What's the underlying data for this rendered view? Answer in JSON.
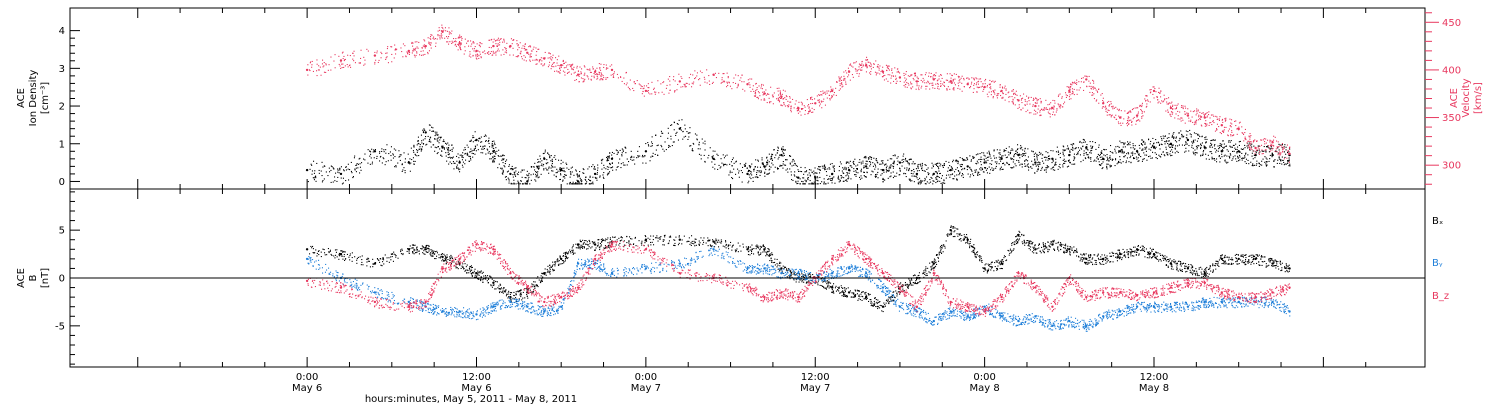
{
  "chart_data": [
    {
      "type": "scatter",
      "panel": "top",
      "ylabel": [
        "ACE",
        "Ion Density",
        "[cm⁻³]"
      ],
      "ylabel_right": [
        "ACE",
        "Velocity",
        "[km/s]"
      ],
      "ylim": [
        -0.2,
        4.6
      ],
      "yticks": [
        0,
        1,
        2,
        3,
        4
      ],
      "ylim_right": [
        275,
        465
      ],
      "yticks_right": [
        300,
        350,
        400,
        450
      ],
      "series": [
        {
          "axis": "left",
          "color": "#000000",
          "x": [
            0.0,
            0.1,
            0.2,
            0.3,
            0.35,
            0.4,
            0.45,
            0.5,
            0.55,
            0.6,
            0.65,
            0.7,
            0.75,
            0.8,
            0.85,
            0.9,
            1.0,
            1.1,
            1.2,
            1.3,
            1.35,
            1.4,
            1.45,
            1.5,
            1.55,
            1.6,
            1.65,
            1.7,
            1.75,
            1.8,
            1.85,
            1.9,
            1.95,
            2.0,
            2.05,
            2.1,
            2.15,
            2.2,
            2.25,
            2.3,
            2.35,
            2.4,
            2.45,
            2.5,
            2.55,
            2.6,
            2.65,
            2.7,
            2.75,
            2.8,
            2.85,
            2.9
          ],
          "values": [
            0.3,
            0.2,
            0.8,
            0.5,
            1.3,
            0.9,
            0.5,
            1.1,
            0.8,
            0.2,
            0.0,
            0.6,
            0.3,
            0.0,
            0.2,
            0.6,
            0.8,
            1.4,
            0.6,
            0.2,
            0.4,
            0.7,
            0.1,
            0.1,
            0.2,
            0.3,
            0.4,
            0.3,
            0.5,
            0.2,
            0.2,
            0.3,
            0.4,
            0.5,
            0.6,
            0.7,
            0.5,
            0.6,
            0.7,
            0.9,
            0.6,
            0.8,
            0.8,
            0.9,
            1.0,
            1.1,
            0.9,
            0.8,
            0.8,
            0.7,
            0.7,
            0.7
          ]
        },
        {
          "axis": "right",
          "color": "#e8385f",
          "x": [
            0.0,
            0.1,
            0.2,
            0.3,
            0.35,
            0.4,
            0.45,
            0.5,
            0.55,
            0.6,
            0.65,
            0.7,
            0.75,
            0.8,
            0.85,
            0.9,
            1.0,
            1.1,
            1.2,
            1.3,
            1.35,
            1.4,
            1.45,
            1.5,
            1.55,
            1.6,
            1.65,
            1.7,
            1.75,
            1.8,
            1.85,
            1.9,
            1.95,
            2.0,
            2.05,
            2.1,
            2.15,
            2.2,
            2.25,
            2.3,
            2.35,
            2.4,
            2.45,
            2.5,
            2.55,
            2.6,
            2.65,
            2.7,
            2.75,
            2.8,
            2.85,
            2.9
          ],
          "values": [
            400,
            410,
            415,
            420,
            425,
            440,
            428,
            420,
            425,
            425,
            418,
            412,
            405,
            395,
            398,
            400,
            378,
            388,
            395,
            385,
            375,
            372,
            360,
            365,
            378,
            398,
            405,
            398,
            392,
            388,
            390,
            388,
            385,
            382,
            378,
            368,
            362,
            360,
            378,
            390,
            365,
            350,
            352,
            378,
            360,
            352,
            350,
            342,
            338,
            318,
            324,
            312
          ]
        }
      ]
    },
    {
      "type": "scatter",
      "panel": "bottom",
      "ylabel": [
        "ACE",
        "B",
        "[nT]"
      ],
      "ylim": [
        -9.3,
        9.3
      ],
      "yticks": [
        -5,
        0,
        5
      ],
      "zero_line": true,
      "series": [
        {
          "name": "Bₓ",
          "color": "#000000",
          "x": [
            0.0,
            0.1,
            0.2,
            0.3,
            0.35,
            0.4,
            0.45,
            0.5,
            0.55,
            0.6,
            0.65,
            0.7,
            0.75,
            0.8,
            0.85,
            0.9,
            1.0,
            1.1,
            1.2,
            1.3,
            1.35,
            1.4,
            1.45,
            1.5,
            1.55,
            1.6,
            1.65,
            1.7,
            1.75,
            1.8,
            1.85,
            1.9,
            1.95,
            2.0,
            2.05,
            2.1,
            2.15,
            2.2,
            2.25,
            2.3,
            2.35,
            2.4,
            2.45,
            2.5,
            2.55,
            2.6,
            2.65,
            2.7,
            2.75,
            2.8,
            2.85,
            2.9
          ],
          "values": [
            3.0,
            2.5,
            1.5,
            3.0,
            3.0,
            2.2,
            1.5,
            0.5,
            -0.5,
            -2.0,
            -1.5,
            0.5,
            2.0,
            3.5,
            3.5,
            3.8,
            4.0,
            4.0,
            3.8,
            3.0,
            3.0,
            1.0,
            0.0,
            0.0,
            -1.0,
            -1.5,
            -2.0,
            -3.0,
            -1.0,
            0.0,
            1.5,
            5.0,
            4.0,
            1.0,
            1.5,
            4.5,
            3.0,
            3.5,
            3.0,
            2.0,
            2.0,
            2.5,
            3.0,
            2.5,
            1.5,
            1.0,
            0.5,
            2.0,
            2.0,
            2.0,
            1.5,
            1.0
          ]
        },
        {
          "name": "Bᵧ",
          "color": "#1f7fd9",
          "x": [
            0.0,
            0.1,
            0.2,
            0.3,
            0.35,
            0.4,
            0.45,
            0.5,
            0.55,
            0.6,
            0.65,
            0.7,
            0.75,
            0.8,
            0.85,
            0.9,
            1.0,
            1.1,
            1.2,
            1.3,
            1.35,
            1.4,
            1.45,
            1.5,
            1.55,
            1.6,
            1.65,
            1.7,
            1.75,
            1.8,
            1.85,
            1.9,
            1.95,
            2.0,
            2.05,
            2.1,
            2.15,
            2.2,
            2.25,
            2.3,
            2.35,
            2.4,
            2.45,
            2.5,
            2.55,
            2.6,
            2.65,
            2.7,
            2.75,
            2.8,
            2.85,
            2.9
          ],
          "values": [
            2.0,
            0.0,
            -1.5,
            -2.5,
            -3.0,
            -3.5,
            -3.5,
            -3.8,
            -3.0,
            -2.5,
            -3.0,
            -3.5,
            -3.0,
            1.5,
            1.5,
            0.5,
            1.0,
            1.5,
            3.0,
            1.0,
            1.0,
            0.5,
            0.5,
            0.0,
            0.5,
            1.0,
            0.5,
            -1.0,
            -3.0,
            -3.5,
            -4.5,
            -3.5,
            -4.0,
            -3.0,
            -4.0,
            -4.5,
            -4.0,
            -5.0,
            -4.5,
            -5.0,
            -4.0,
            -3.5,
            -3.0,
            -3.0,
            -3.0,
            -3.0,
            -2.5,
            -2.5,
            -2.5,
            -2.5,
            -2.5,
            -3.5
          ]
        },
        {
          "name": "B_z",
          "color": "#e8385f",
          "x": [
            0.0,
            0.1,
            0.2,
            0.3,
            0.35,
            0.4,
            0.45,
            0.5,
            0.55,
            0.6,
            0.65,
            0.7,
            0.75,
            0.8,
            0.85,
            0.9,
            1.0,
            1.1,
            1.2,
            1.3,
            1.35,
            1.4,
            1.45,
            1.5,
            1.55,
            1.6,
            1.65,
            1.7,
            1.75,
            1.8,
            1.85,
            1.9,
            1.95,
            2.0,
            2.05,
            2.1,
            2.15,
            2.2,
            2.25,
            2.3,
            2.35,
            2.4,
            2.45,
            2.5,
            2.55,
            2.6,
            2.65,
            2.7,
            2.75,
            2.8,
            2.85,
            2.9
          ],
          "values": [
            -0.3,
            -1.0,
            -2.5,
            -3.0,
            -2.5,
            1.0,
            2.0,
            3.5,
            3.0,
            0.5,
            -1.0,
            -2.5,
            -2.0,
            -1.0,
            2.0,
            3.5,
            3.0,
            0.5,
            0.0,
            -1.0,
            -2.0,
            -1.5,
            -2.0,
            0.0,
            2.0,
            3.5,
            2.0,
            0.5,
            -1.0,
            -3.0,
            0.5,
            -2.5,
            -3.0,
            -3.5,
            -2.0,
            0.5,
            -1.0,
            -3.0,
            0.0,
            -2.0,
            -1.5,
            -1.5,
            -1.8,
            -1.5,
            -1.0,
            -0.5,
            -0.5,
            -1.5,
            -2.0,
            -2.0,
            -1.5,
            -1.0
          ]
        }
      ]
    }
  ],
  "x_axis": {
    "xlim": [
      -0.7,
      3.3
    ],
    "ticks": [
      {
        "x": 0.0,
        "time": "0:00",
        "date": "May 6"
      },
      {
        "x": 0.5,
        "time": "12:00",
        "date": "May 6"
      },
      {
        "x": 1.0,
        "time": "0:00",
        "date": "May 7"
      },
      {
        "x": 1.5,
        "time": "12:00",
        "date": "May 7"
      },
      {
        "x": 2.0,
        "time": "0:00",
        "date": "May 8"
      },
      {
        "x": 2.5,
        "time": "12:00",
        "date": "May 8"
      }
    ],
    "label": "hours:minutes, May  5, 2011 - May  8, 2011"
  }
}
